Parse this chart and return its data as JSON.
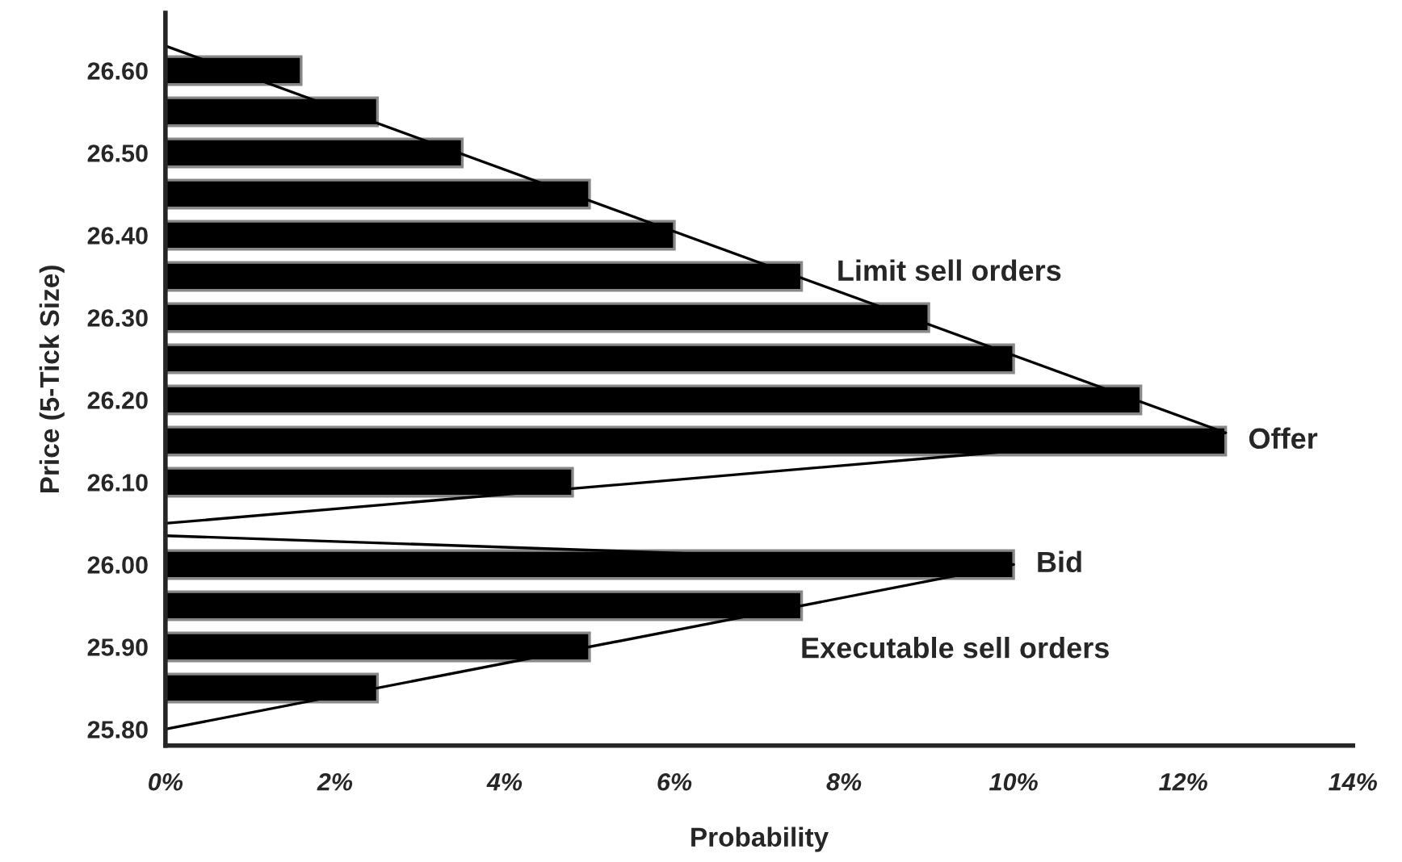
{
  "chart_data": {
    "type": "bar",
    "orientation": "horizontal",
    "xlabel": "Probability",
    "ylabel": "Price (5-Tick Size)",
    "x": [
      26.6,
      26.55,
      26.5,
      26.45,
      26.4,
      26.35,
      26.3,
      26.25,
      26.2,
      26.15,
      26.1,
      26.0,
      25.95,
      25.9,
      25.85
    ],
    "series": [
      {
        "color": "#000000",
        "values": [
          1.6,
          2.5,
          3.5,
          5,
          6,
          7.5,
          9,
          10,
          11.5,
          12.5,
          4.8,
          10,
          7.5,
          5,
          2.5
        ]
      },
      {
        "type": "line",
        "color": "#000000",
        "x": [
          26.63,
          26.16,
          26.05
        ],
        "values": [
          0,
          12.5,
          0
        ]
      },
      {
        "type": "line",
        "color": "#000000",
        "x": [
          26.035,
          26.0,
          25.8
        ],
        "values": [
          0,
          10,
          0
        ]
      }
    ],
    "xlim": [
      0,
      14
    ],
    "xticks": [
      {
        "value": 0,
        "label": "0%"
      },
      {
        "value": 2,
        "label": "2%"
      },
      {
        "value": 4,
        "label": "4%"
      },
      {
        "value": 6,
        "label": "6%"
      },
      {
        "value": 8,
        "label": "8%"
      },
      {
        "value": 10,
        "label": "10%"
      },
      {
        "value": 12,
        "label": "12%"
      },
      {
        "value": 14,
        "label": "14%"
      }
    ],
    "ylim": [
      25.78,
      26.67
    ],
    "yticks": [
      {
        "value": 25.8,
        "label": "25.80"
      },
      {
        "value": 25.9,
        "label": "25.90"
      },
      {
        "value": 26.0,
        "label": "26.00"
      },
      {
        "value": 26.1,
        "label": "26.10"
      },
      {
        "value": 26.2,
        "label": "26.20"
      },
      {
        "value": 26.3,
        "label": "26.30"
      },
      {
        "value": 26.4,
        "label": "26.40"
      },
      {
        "value": 26.5,
        "label": "26.50"
      },
      {
        "value": 26.6,
        "label": "26.60"
      }
    ],
    "annotations": [
      "Limit sell orders",
      {
        "text": "Offer",
        "x": 12.5,
        "y": 26.15
      },
      {
        "text": "Bid",
        "x": 10,
        "y": 26.0
      },
      "Executable sell orders"
    ],
    "grid": false,
    "legend": false
  }
}
